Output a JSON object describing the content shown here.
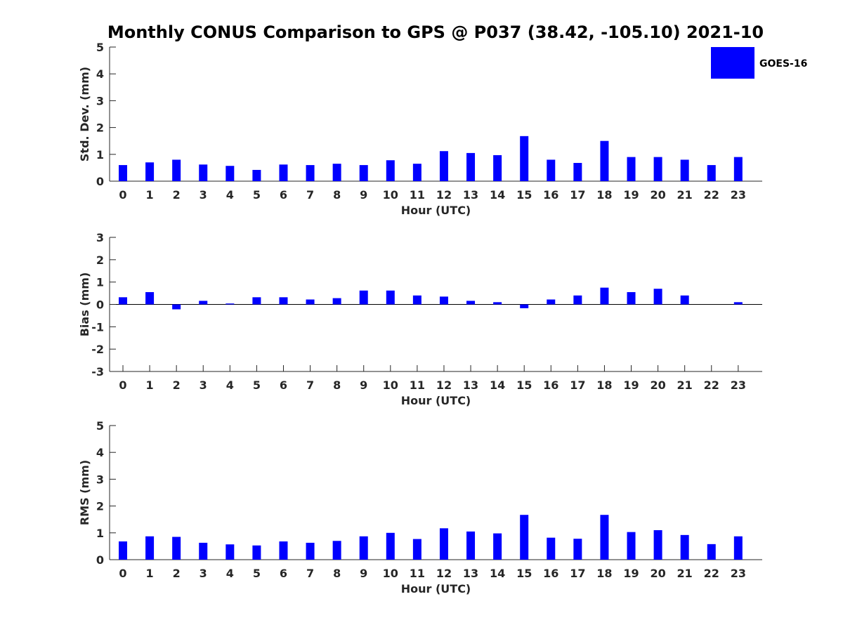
{
  "chart_data": [
    {
      "type": "bar",
      "title": "Monthly CONUS Comparison to GPS @ P037 (38.42, -105.10) 2021-10",
      "xlabel": "Hour (UTC)",
      "ylabel": "Std. Dev. (mm)",
      "ylim": [
        0,
        5
      ],
      "yticks": [
        "0",
        "1",
        "2",
        "3",
        "4",
        "5"
      ],
      "categories": [
        "0",
        "1",
        "2",
        "3",
        "4",
        "5",
        "6",
        "7",
        "8",
        "9",
        "10",
        "11",
        "12",
        "13",
        "14",
        "15",
        "16",
        "17",
        "18",
        "19",
        "20",
        "21",
        "22",
        "23"
      ],
      "series": [
        {
          "name": "GOES-16",
          "color": "#0000ff",
          "values": [
            0.6,
            0.7,
            0.8,
            0.62,
            0.57,
            0.42,
            0.62,
            0.6,
            0.65,
            0.6,
            0.78,
            0.65,
            1.12,
            1.05,
            0.97,
            1.68,
            0.8,
            0.68,
            1.5,
            0.9,
            0.9,
            0.8,
            0.6,
            0.9
          ]
        }
      ],
      "legend": {
        "position": "top-right",
        "entries": [
          "GOES-16"
        ]
      },
      "grid": false
    },
    {
      "type": "bar",
      "title": "",
      "xlabel": "Hour (UTC)",
      "ylabel": "Bias (mm)",
      "ylim": [
        -3,
        3
      ],
      "yticks": [
        "-3",
        "-2",
        "-1",
        "0",
        "1",
        "2",
        "3"
      ],
      "categories": [
        "0",
        "1",
        "2",
        "3",
        "4",
        "5",
        "6",
        "7",
        "8",
        "9",
        "10",
        "11",
        "12",
        "13",
        "14",
        "15",
        "16",
        "17",
        "18",
        "19",
        "20",
        "21",
        "22",
        "23"
      ],
      "series": [
        {
          "name": "GOES-16",
          "color": "#0000ff",
          "values": [
            0.32,
            0.55,
            -0.22,
            0.16,
            0.04,
            0.32,
            0.32,
            0.22,
            0.28,
            0.62,
            0.62,
            0.4,
            0.35,
            0.16,
            0.1,
            -0.17,
            0.22,
            0.4,
            0.75,
            0.55,
            0.7,
            0.4,
            0.0,
            0.1
          ]
        }
      ],
      "grid": false
    },
    {
      "type": "bar",
      "title": "",
      "xlabel": "Hour (UTC)",
      "ylabel": "RMS (mm)",
      "ylim": [
        0,
        5
      ],
      "yticks": [
        "0",
        "1",
        "2",
        "3",
        "4",
        "5"
      ],
      "categories": [
        "0",
        "1",
        "2",
        "3",
        "4",
        "5",
        "6",
        "7",
        "8",
        "9",
        "10",
        "11",
        "12",
        "13",
        "14",
        "15",
        "16",
        "17",
        "18",
        "19",
        "20",
        "21",
        "22",
        "23"
      ],
      "series": [
        {
          "name": "GOES-16",
          "color": "#0000ff",
          "values": [
            0.68,
            0.87,
            0.85,
            0.63,
            0.57,
            0.53,
            0.68,
            0.63,
            0.7,
            0.87,
            1.0,
            0.77,
            1.17,
            1.05,
            0.98,
            1.67,
            0.82,
            0.78,
            1.67,
            1.03,
            1.1,
            0.92,
            0.58,
            0.87
          ]
        }
      ],
      "grid": false
    }
  ]
}
